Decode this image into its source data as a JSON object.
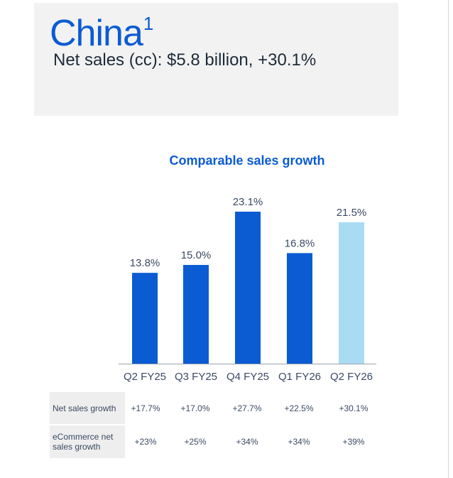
{
  "header": {
    "region": "China",
    "footnote": "1",
    "headline": "Net sales (cc): $5.8 billion, +30.1%"
  },
  "chart_data": {
    "type": "bar",
    "title": "Comparable sales growth",
    "categories": [
      "Q2 FY25",
      "Q3 FY25",
      "Q4 FY25",
      "Q1 FY26",
      "Q2 FY26"
    ],
    "values": [
      13.8,
      15.0,
      23.1,
      16.8,
      21.5
    ],
    "value_labels": [
      "13.8%",
      "15.0%",
      "23.1%",
      "16.8%",
      "21.5%"
    ],
    "unit": "%",
    "ylim": [
      0,
      23.1
    ],
    "grid": false,
    "bar_colors": [
      "#0b5bd3",
      "#0b5bd3",
      "#0b5bd3",
      "#0b5bd3",
      "#a9dcf3"
    ],
    "axis_color": "#9aa3ad",
    "tick_color": "#3a4a63"
  },
  "table": {
    "rows": [
      {
        "label": "Net sales growth",
        "values": [
          "+17.7%",
          "+17.0%",
          "+27.7%",
          "+22.5%",
          "+30.1%"
        ]
      },
      {
        "label": "eCommerce net sales growth",
        "values": [
          "+23%",
          "+25%",
          "+34%",
          "+34%",
          "+39%"
        ]
      }
    ]
  }
}
